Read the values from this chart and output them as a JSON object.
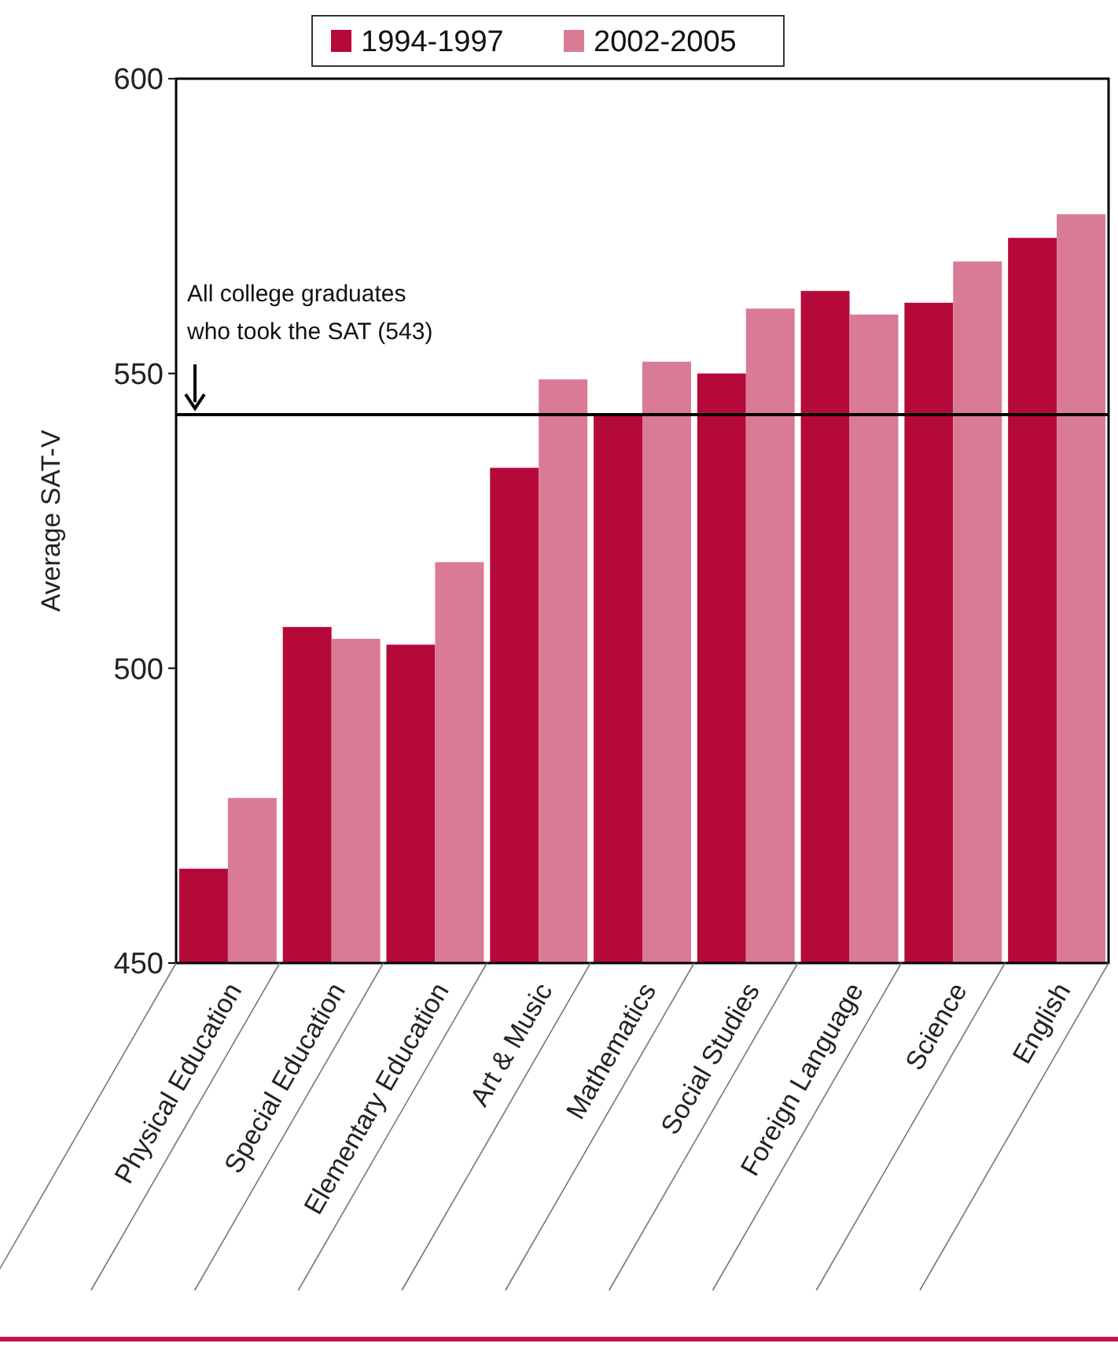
{
  "chart_data": {
    "type": "bar",
    "ylabel": "Average SAT-V",
    "categories": [
      "Physical Education",
      "Special Education",
      "Elementary Education",
      "Art & Music",
      "Mathematics",
      "Social Studies",
      "Foreign Language",
      "Science",
      "English"
    ],
    "series": [
      {
        "name": "1994-1997",
        "color": "#b5093a",
        "values": [
          466,
          507,
          504,
          534,
          543,
          550,
          564,
          562,
          573
        ]
      },
      {
        "name": "2002-2005",
        "color": "#d97b95",
        "values": [
          478,
          505,
          518,
          549,
          552,
          561,
          560,
          569,
          577
        ]
      }
    ],
    "ylim": [
      450,
      600
    ],
    "yticks": [
      450,
      500,
      550,
      600
    ],
    "grid": false,
    "legend": "top",
    "ref_lines": [
      {
        "axis": "y",
        "value": 543,
        "label": "All college graduates\nwho took the SAT (543)",
        "color": "#000000"
      }
    ]
  }
}
